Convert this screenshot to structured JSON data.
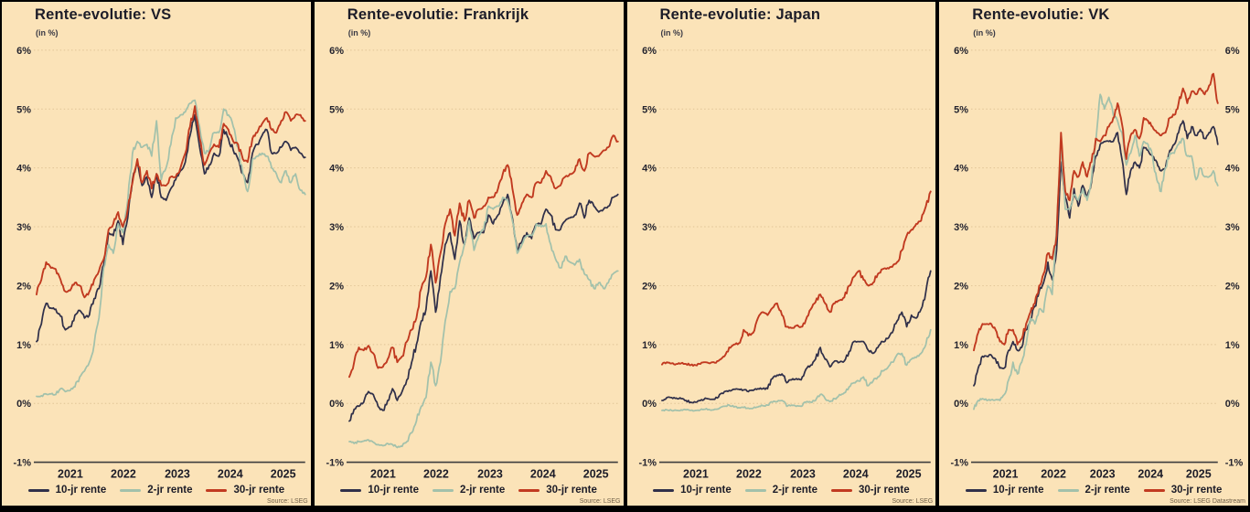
{
  "colors": {
    "background": "#fbe3b8",
    "frame": "#000000",
    "grid": "#e0c496",
    "axis": "#3d3d3d",
    "title_text": "#1c1c28",
    "source_text": "#6e5f48",
    "series_10jr": "#30304a",
    "series_2jr": "#a2c1ab",
    "series_30jr": "#c13a20"
  },
  "axis": {
    "y_ticks": [
      "6%",
      "5%",
      "4%",
      "3%",
      "2%",
      "1%",
      "0%",
      "-1%"
    ],
    "y_values": [
      6,
      5,
      4,
      3,
      2,
      1,
      0,
      -1
    ],
    "x_ticks": [
      "2021",
      "2022",
      "2023",
      "2024",
      "2025"
    ],
    "ylim": [
      -1,
      6
    ],
    "y_unit": "%",
    "grid": "dotted horizontal"
  },
  "legend": [
    {
      "label": "10-jr rente",
      "color_key": "series_10jr"
    },
    {
      "label": "2-jr rente",
      "color_key": "series_2jr"
    },
    {
      "label": "30-jr rente",
      "color_key": "series_30jr"
    }
  ],
  "chart_data": [
    {
      "type": "line",
      "title": "Rente-evolutie: VS",
      "subtitle": "(in %)",
      "source": "Source: LSEG",
      "right_axis": false,
      "x_start": "2021-01",
      "x_end": "2025-09",
      "frequency": "monthly",
      "series": [
        {
          "id": "10jr",
          "name": "10-jr rente",
          "color_key": "series_10jr",
          "values": [
            1.05,
            1.35,
            1.7,
            1.62,
            1.6,
            1.48,
            1.25,
            1.3,
            1.5,
            1.58,
            1.45,
            1.5,
            1.78,
            1.95,
            2.35,
            2.9,
            2.85,
            3.1,
            2.7,
            3.15,
            3.8,
            4.1,
            3.7,
            3.85,
            3.5,
            3.9,
            3.5,
            3.45,
            3.65,
            3.8,
            3.95,
            4.1,
            4.55,
            4.9,
            4.35,
            3.9,
            4.05,
            4.25,
            4.2,
            4.65,
            4.5,
            4.3,
            4.15,
            3.9,
            3.75,
            4.25,
            4.4,
            4.55,
            4.65,
            4.25,
            4.25,
            4.35,
            4.45,
            4.3,
            4.35,
            4.25,
            4.18
          ]
        },
        {
          "id": "2jr",
          "name": "2-jr rente",
          "color_key": "series_2jr",
          "values": [
            0.12,
            0.13,
            0.16,
            0.16,
            0.15,
            0.25,
            0.2,
            0.22,
            0.28,
            0.45,
            0.55,
            0.7,
            1.0,
            1.45,
            2.3,
            2.7,
            2.55,
            3.05,
            2.9,
            3.45,
            4.25,
            4.45,
            4.35,
            4.4,
            4.2,
            4.8,
            3.8,
            4.0,
            4.4,
            4.85,
            4.9,
            4.95,
            5.1,
            5.15,
            4.7,
            4.25,
            4.3,
            4.6,
            4.6,
            5.0,
            4.9,
            4.7,
            4.35,
            3.9,
            3.6,
            4.15,
            4.2,
            4.25,
            4.2,
            4.0,
            3.9,
            3.75,
            3.95,
            3.75,
            3.9,
            3.62,
            3.55
          ]
        },
        {
          "id": "30jr",
          "name": "30-jr rente",
          "color_key": "series_30jr",
          "values": [
            1.85,
            2.1,
            2.4,
            2.3,
            2.28,
            2.1,
            1.9,
            1.92,
            2.05,
            2.0,
            1.8,
            1.9,
            2.1,
            2.25,
            2.45,
            2.95,
            3.05,
            3.25,
            3.0,
            3.3,
            3.75,
            4.15,
            3.75,
            3.95,
            3.65,
            3.9,
            3.7,
            3.7,
            3.85,
            3.85,
            4.0,
            4.25,
            4.7,
            5.05,
            4.5,
            4.05,
            4.25,
            4.4,
            4.35,
            4.75,
            4.65,
            4.45,
            4.4,
            4.15,
            4.1,
            4.5,
            4.6,
            4.75,
            4.85,
            4.65,
            4.6,
            4.8,
            4.95,
            4.8,
            4.9,
            4.9,
            4.8
          ]
        }
      ]
    },
    {
      "type": "line",
      "title": "Rente-evolutie: Frankrijk",
      "subtitle": "(in %)",
      "source": "Source: LSEG",
      "right_axis": false,
      "x_start": "2021-01",
      "x_end": "2025-09",
      "frequency": "monthly",
      "series": [
        {
          "id": "10jr",
          "name": "10-jr rente",
          "color_key": "series_10jr",
          "values": [
            -0.3,
            -0.1,
            -0.05,
            0.02,
            0.2,
            0.15,
            -0.05,
            -0.12,
            0.05,
            0.25,
            0.05,
            0.2,
            0.4,
            0.7,
            1.0,
            1.4,
            1.6,
            2.25,
            1.55,
            2.15,
            2.7,
            2.9,
            2.45,
            3.1,
            2.7,
            3.15,
            2.8,
            2.9,
            2.9,
            3.2,
            3.05,
            3.2,
            3.4,
            3.55,
            3.15,
            2.6,
            2.75,
            2.9,
            2.8,
            3.05,
            3.05,
            3.3,
            3.2,
            2.95,
            2.95,
            3.1,
            3.15,
            3.2,
            3.4,
            3.15,
            3.45,
            3.35,
            3.25,
            3.3,
            3.35,
            3.5,
            3.55
          ]
        },
        {
          "id": "2jr",
          "name": "2-jr rente",
          "color_key": "series_2jr",
          "values": [
            -0.65,
            -0.68,
            -0.65,
            -0.64,
            -0.62,
            -0.66,
            -0.7,
            -0.72,
            -0.68,
            -0.7,
            -0.75,
            -0.73,
            -0.65,
            -0.5,
            -0.3,
            -0.05,
            0.1,
            0.7,
            0.3,
            0.7,
            1.4,
            1.9,
            1.95,
            2.4,
            2.7,
            3.1,
            2.6,
            2.85,
            2.95,
            3.35,
            3.3,
            3.35,
            3.5,
            3.45,
            3.1,
            2.55,
            2.7,
            2.85,
            2.85,
            3.05,
            3.0,
            3.05,
            2.7,
            2.45,
            2.3,
            2.5,
            2.4,
            2.35,
            2.45,
            2.2,
            2.1,
            1.95,
            2.05,
            1.95,
            2.05,
            2.2,
            2.25
          ]
        },
        {
          "id": "30jr",
          "name": "30-jr rente",
          "color_key": "series_30jr",
          "values": [
            0.45,
            0.7,
            0.95,
            0.9,
            0.98,
            0.85,
            0.6,
            0.62,
            0.75,
            0.95,
            0.7,
            0.8,
            1.05,
            1.25,
            1.45,
            1.95,
            2.15,
            2.7,
            2.05,
            2.55,
            3.05,
            3.3,
            2.85,
            3.4,
            3.1,
            3.45,
            3.15,
            3.3,
            3.35,
            3.5,
            3.5,
            3.65,
            3.9,
            4.05,
            3.65,
            3.2,
            3.4,
            3.55,
            3.5,
            3.75,
            3.75,
            3.95,
            3.85,
            3.65,
            3.7,
            3.85,
            3.9,
            3.95,
            4.15,
            3.95,
            4.25,
            4.2,
            4.2,
            4.3,
            4.35,
            4.55,
            4.45
          ]
        }
      ]
    },
    {
      "type": "line",
      "title": "Rente-evolutie: Japan",
      "subtitle": "(in %)",
      "source": "Source: LSEG",
      "right_axis": false,
      "x_start": "2021-01",
      "x_end": "2025-09",
      "frequency": "monthly",
      "series": [
        {
          "id": "10jr",
          "name": "10-jr rente",
          "color_key": "series_10jr",
          "values": [
            0.05,
            0.1,
            0.1,
            0.09,
            0.08,
            0.05,
            0.02,
            0.02,
            0.05,
            0.09,
            0.07,
            0.07,
            0.15,
            0.2,
            0.22,
            0.24,
            0.24,
            0.23,
            0.2,
            0.22,
            0.25,
            0.25,
            0.25,
            0.42,
            0.48,
            0.5,
            0.35,
            0.4,
            0.42,
            0.4,
            0.58,
            0.65,
            0.75,
            0.95,
            0.75,
            0.62,
            0.72,
            0.7,
            0.72,
            0.88,
            1.05,
            1.05,
            1.05,
            0.9,
            0.85,
            0.95,
            1.05,
            1.1,
            1.2,
            1.4,
            1.55,
            1.3,
            1.5,
            1.45,
            1.6,
            1.9,
            2.25
          ]
        },
        {
          "id": "2jr",
          "name": "2-jr rente",
          "color_key": "series_2jr",
          "values": [
            -0.12,
            -0.11,
            -0.12,
            -0.12,
            -0.11,
            -0.11,
            -0.12,
            -0.12,
            -0.11,
            -0.1,
            -0.11,
            -0.1,
            -0.08,
            -0.05,
            -0.03,
            -0.06,
            -0.07,
            -0.07,
            -0.08,
            -0.08,
            -0.06,
            -0.04,
            -0.03,
            0.02,
            0.03,
            0.05,
            -0.05,
            -0.03,
            -0.05,
            -0.05,
            0.02,
            0.02,
            0.05,
            0.15,
            0.08,
            0.03,
            0.08,
            0.15,
            0.18,
            0.28,
            0.35,
            0.38,
            0.45,
            0.3,
            0.38,
            0.45,
            0.55,
            0.6,
            0.7,
            0.83,
            0.85,
            0.65,
            0.75,
            0.78,
            0.85,
            1.0,
            1.25
          ]
        },
        {
          "id": "30jr",
          "name": "30-jr rente",
          "color_key": "series_30jr",
          "values": [
            0.66,
            0.7,
            0.68,
            0.67,
            0.68,
            0.67,
            0.65,
            0.65,
            0.67,
            0.7,
            0.68,
            0.69,
            0.74,
            0.8,
            0.95,
            1.0,
            1.02,
            1.25,
            1.15,
            1.2,
            1.45,
            1.55,
            1.5,
            1.62,
            1.7,
            1.5,
            1.3,
            1.28,
            1.32,
            1.3,
            1.42,
            1.6,
            1.72,
            1.85,
            1.7,
            1.55,
            1.7,
            1.75,
            1.8,
            2.0,
            2.15,
            2.25,
            2.1,
            2.0,
            2.05,
            2.2,
            2.28,
            2.3,
            2.32,
            2.4,
            2.6,
            2.85,
            2.95,
            3.05,
            3.1,
            3.35,
            3.6
          ]
        }
      ]
    },
    {
      "type": "line",
      "title": "Rente-evolutie: VK",
      "subtitle": "(in %)",
      "source": "Source: LSEG Datastream",
      "right_axis": true,
      "x_start": "2021-01",
      "x_end": "2025-09",
      "frequency": "monthly",
      "series": [
        {
          "id": "10jr",
          "name": "10-jr rente",
          "color_key": "series_10jr",
          "values": [
            0.3,
            0.6,
            0.8,
            0.8,
            0.82,
            0.75,
            0.6,
            0.6,
            0.9,
            1.05,
            0.9,
            0.95,
            1.25,
            1.45,
            1.65,
            1.9,
            2.05,
            2.4,
            2.1,
            2.6,
            4.1,
            3.5,
            3.15,
            3.65,
            3.35,
            3.7,
            3.5,
            3.75,
            4.2,
            4.4,
            4.45,
            4.45,
            4.45,
            4.6,
            4.15,
            3.55,
            3.95,
            4.1,
            4.0,
            4.35,
            4.3,
            4.2,
            4.1,
            3.95,
            4.0,
            4.3,
            4.4,
            4.6,
            4.8,
            4.5,
            4.7,
            4.55,
            4.65,
            4.5,
            4.6,
            4.7,
            4.4
          ]
        },
        {
          "id": "2jr",
          "name": "2-jr rente",
          "color_key": "series_2jr",
          "values": [
            -0.1,
            0.05,
            0.08,
            0.05,
            0.06,
            0.06,
            0.05,
            0.15,
            0.4,
            0.7,
            0.5,
            0.7,
            1.0,
            1.45,
            1.35,
            1.6,
            1.55,
            2.0,
            1.85,
            3.0,
            4.4,
            3.3,
            3.3,
            3.55,
            3.45,
            3.65,
            3.45,
            3.8,
            4.45,
            5.25,
            5.0,
            5.2,
            4.9,
            4.8,
            4.6,
            4.05,
            4.25,
            4.55,
            4.2,
            4.45,
            4.4,
            4.2,
            3.8,
            3.6,
            4.0,
            4.25,
            4.25,
            4.4,
            4.5,
            4.2,
            4.2,
            3.8,
            4.0,
            3.85,
            3.85,
            3.95,
            3.7
          ]
        },
        {
          "id": "30jr",
          "name": "30-jr rente",
          "color_key": "series_30jr",
          "values": [
            0.9,
            1.2,
            1.35,
            1.35,
            1.35,
            1.25,
            1.05,
            1.0,
            1.25,
            1.25,
            1.0,
            1.1,
            1.35,
            1.55,
            1.7,
            2.0,
            2.2,
            2.55,
            2.45,
            2.85,
            4.6,
            3.6,
            3.45,
            3.95,
            3.85,
            4.1,
            3.85,
            4.1,
            4.5,
            4.45,
            4.55,
            4.7,
            4.85,
            5.1,
            4.75,
            4.15,
            4.55,
            4.65,
            4.5,
            4.85,
            4.8,
            4.7,
            4.6,
            4.55,
            4.6,
            4.85,
            4.9,
            5.1,
            5.35,
            5.1,
            5.3,
            5.25,
            5.35,
            5.25,
            5.4,
            5.6,
            5.1
          ]
        }
      ]
    }
  ]
}
